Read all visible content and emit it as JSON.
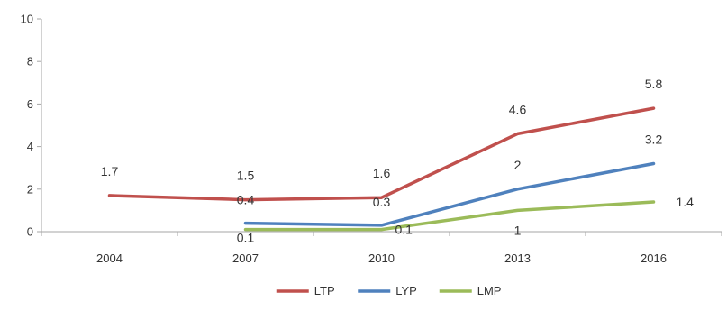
{
  "chart_data": {
    "type": "line",
    "title": "",
    "xlabel": "",
    "ylabel": "",
    "x": [
      "2004",
      "2007",
      "2010",
      "2013",
      "2016"
    ],
    "ylim": [
      0,
      10
    ],
    "yticks": [
      0,
      2,
      4,
      6,
      8,
      10
    ],
    "grid": false,
    "legend": "bottom",
    "series": [
      {
        "name": "LTP",
        "color": "#c0504d",
        "values": [
          1.7,
          1.5,
          1.6,
          4.6,
          5.8
        ],
        "labels": [
          "1.7",
          "1.5",
          "1.6",
          "4.6",
          "5.8"
        ]
      },
      {
        "name": "LYP",
        "color": "#4f81bd",
        "values": [
          null,
          0.4,
          0.3,
          2,
          3.2
        ],
        "labels": [
          null,
          "0.4",
          "0.3",
          "2",
          "3.2"
        ]
      },
      {
        "name": "LMP",
        "color": "#9bbb59",
        "values": [
          null,
          0.1,
          0.1,
          1,
          1.4
        ],
        "labels": [
          null,
          "0.1",
          "0.1",
          "1",
          "1.4"
        ]
      }
    ]
  }
}
